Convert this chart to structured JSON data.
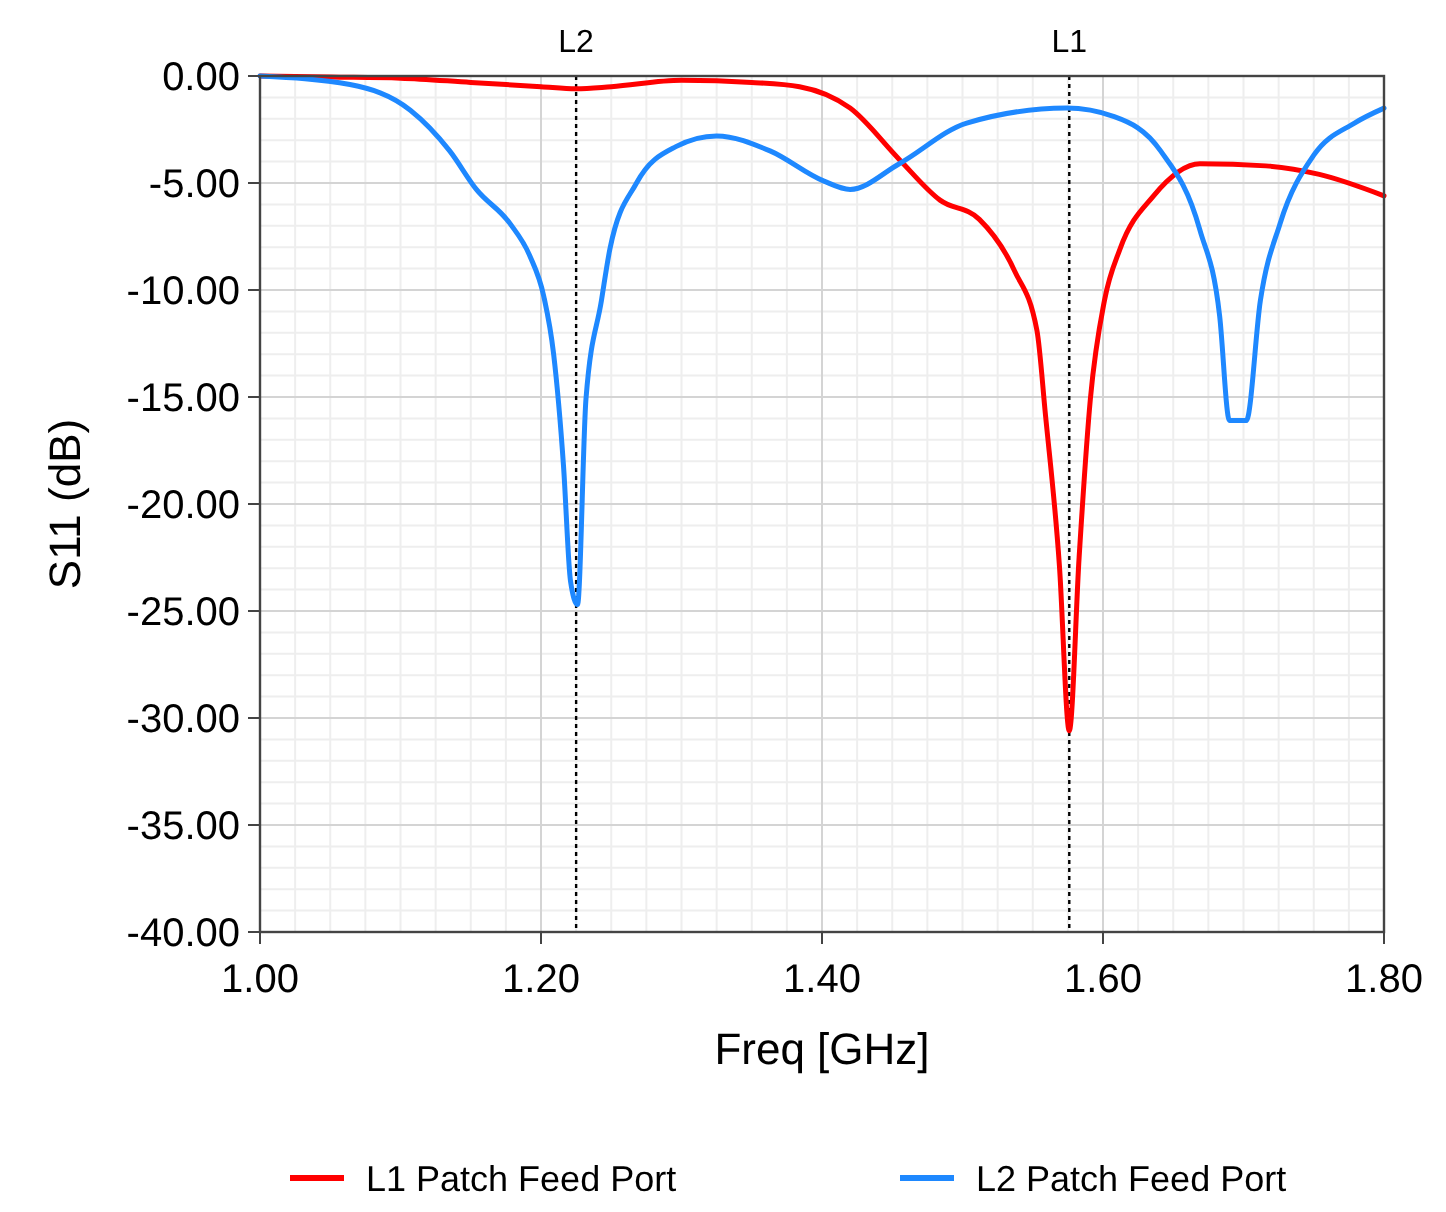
{
  "chart_data": {
    "type": "line",
    "xlabel": "Freq [GHz]",
    "ylabel": "S11 (dB)",
    "xlim": [
      1.0,
      1.8
    ],
    "xticks": [
      {
        "value": 1.0,
        "label": "1.00"
      },
      {
        "value": 1.2,
        "label": "1.20"
      },
      {
        "value": 1.4,
        "label": "1.40"
      },
      {
        "value": 1.6,
        "label": "1.60"
      },
      {
        "value": 1.8,
        "label": "1.80"
      }
    ],
    "ylim": [
      -40,
      0
    ],
    "yticks": [
      {
        "value": -40,
        "label": "-40.00"
      },
      {
        "value": -35,
        "label": "-35.00"
      },
      {
        "value": -30,
        "label": "-30.00"
      },
      {
        "value": -25,
        "label": "-25.00"
      },
      {
        "value": -20,
        "label": "-20.00"
      },
      {
        "value": -15,
        "label": "-15.00"
      },
      {
        "value": -10,
        "label": "-10.00"
      },
      {
        "value": -5,
        "label": "-5.00"
      },
      {
        "value": 0,
        "label": "0.00"
      }
    ],
    "grid": true,
    "legend": "bottom",
    "marker": "none",
    "line_style": "solid",
    "ref_lines": [
      {
        "axis": "x",
        "value": 1.225,
        "label": "L2",
        "line_style": "dotted",
        "color": "#000000"
      },
      {
        "axis": "x",
        "value": 1.576,
        "label": "L1",
        "line_style": "dotted",
        "color": "#000000"
      }
    ],
    "series": [
      {
        "name": "L1 Patch Feed Port",
        "color": "#ff0000",
        "x": [
          1.0,
          1.05,
          1.1,
          1.15,
          1.2,
          1.225,
          1.25,
          1.3,
          1.35,
          1.384,
          1.42,
          1.455,
          1.484,
          1.512,
          1.537,
          1.553,
          1.559,
          1.569,
          1.576,
          1.583,
          1.591,
          1.601,
          1.612,
          1.636,
          1.669,
          1.716,
          1.754,
          1.8
        ],
        "values": [
          0,
          -0.05,
          -0.1,
          -0.3,
          -0.5,
          -0.6,
          -0.5,
          -0.2,
          -0.3,
          -0.5,
          -1.5,
          -3.9,
          -5.8,
          -6.7,
          -9.1,
          -11.9,
          -15.8,
          -22.9,
          -30.6,
          -22.5,
          -15.1,
          -10.5,
          -8.1,
          -5.6,
          -4.1,
          -4.2,
          -4.6,
          -5.6
        ]
      },
      {
        "name": "L2 Patch Feed Port",
        "color": "#1e88ff",
        "x": [
          1.0,
          1.064,
          1.107,
          1.135,
          1.154,
          1.178,
          1.192,
          1.202,
          1.209,
          1.216,
          1.221,
          1.226,
          1.232,
          1.243,
          1.249,
          1.268,
          1.296,
          1.325,
          1.363,
          1.401,
          1.42,
          1.455,
          1.503,
          1.574,
          1.608,
          1.641,
          1.669,
          1.683,
          1.69,
          1.702,
          1.712,
          1.726,
          1.75,
          1.779,
          1.8
        ],
        "values": [
          0,
          -0.4,
          -1.6,
          -3.5,
          -5.3,
          -6.9,
          -8.4,
          -10.3,
          -13,
          -18.2,
          -23.6,
          -24.7,
          -15.1,
          -10.5,
          -8.1,
          -5.0,
          -3.3,
          -2.8,
          -3.5,
          -4.9,
          -5.3,
          -4.1,
          -2.2,
          -1.5,
          -1.9,
          -3.5,
          -7.2,
          -11.2,
          -16.1,
          -16.1,
          -10.5,
          -6.9,
          -3.7,
          -2.2,
          -1.5
        ]
      }
    ]
  }
}
